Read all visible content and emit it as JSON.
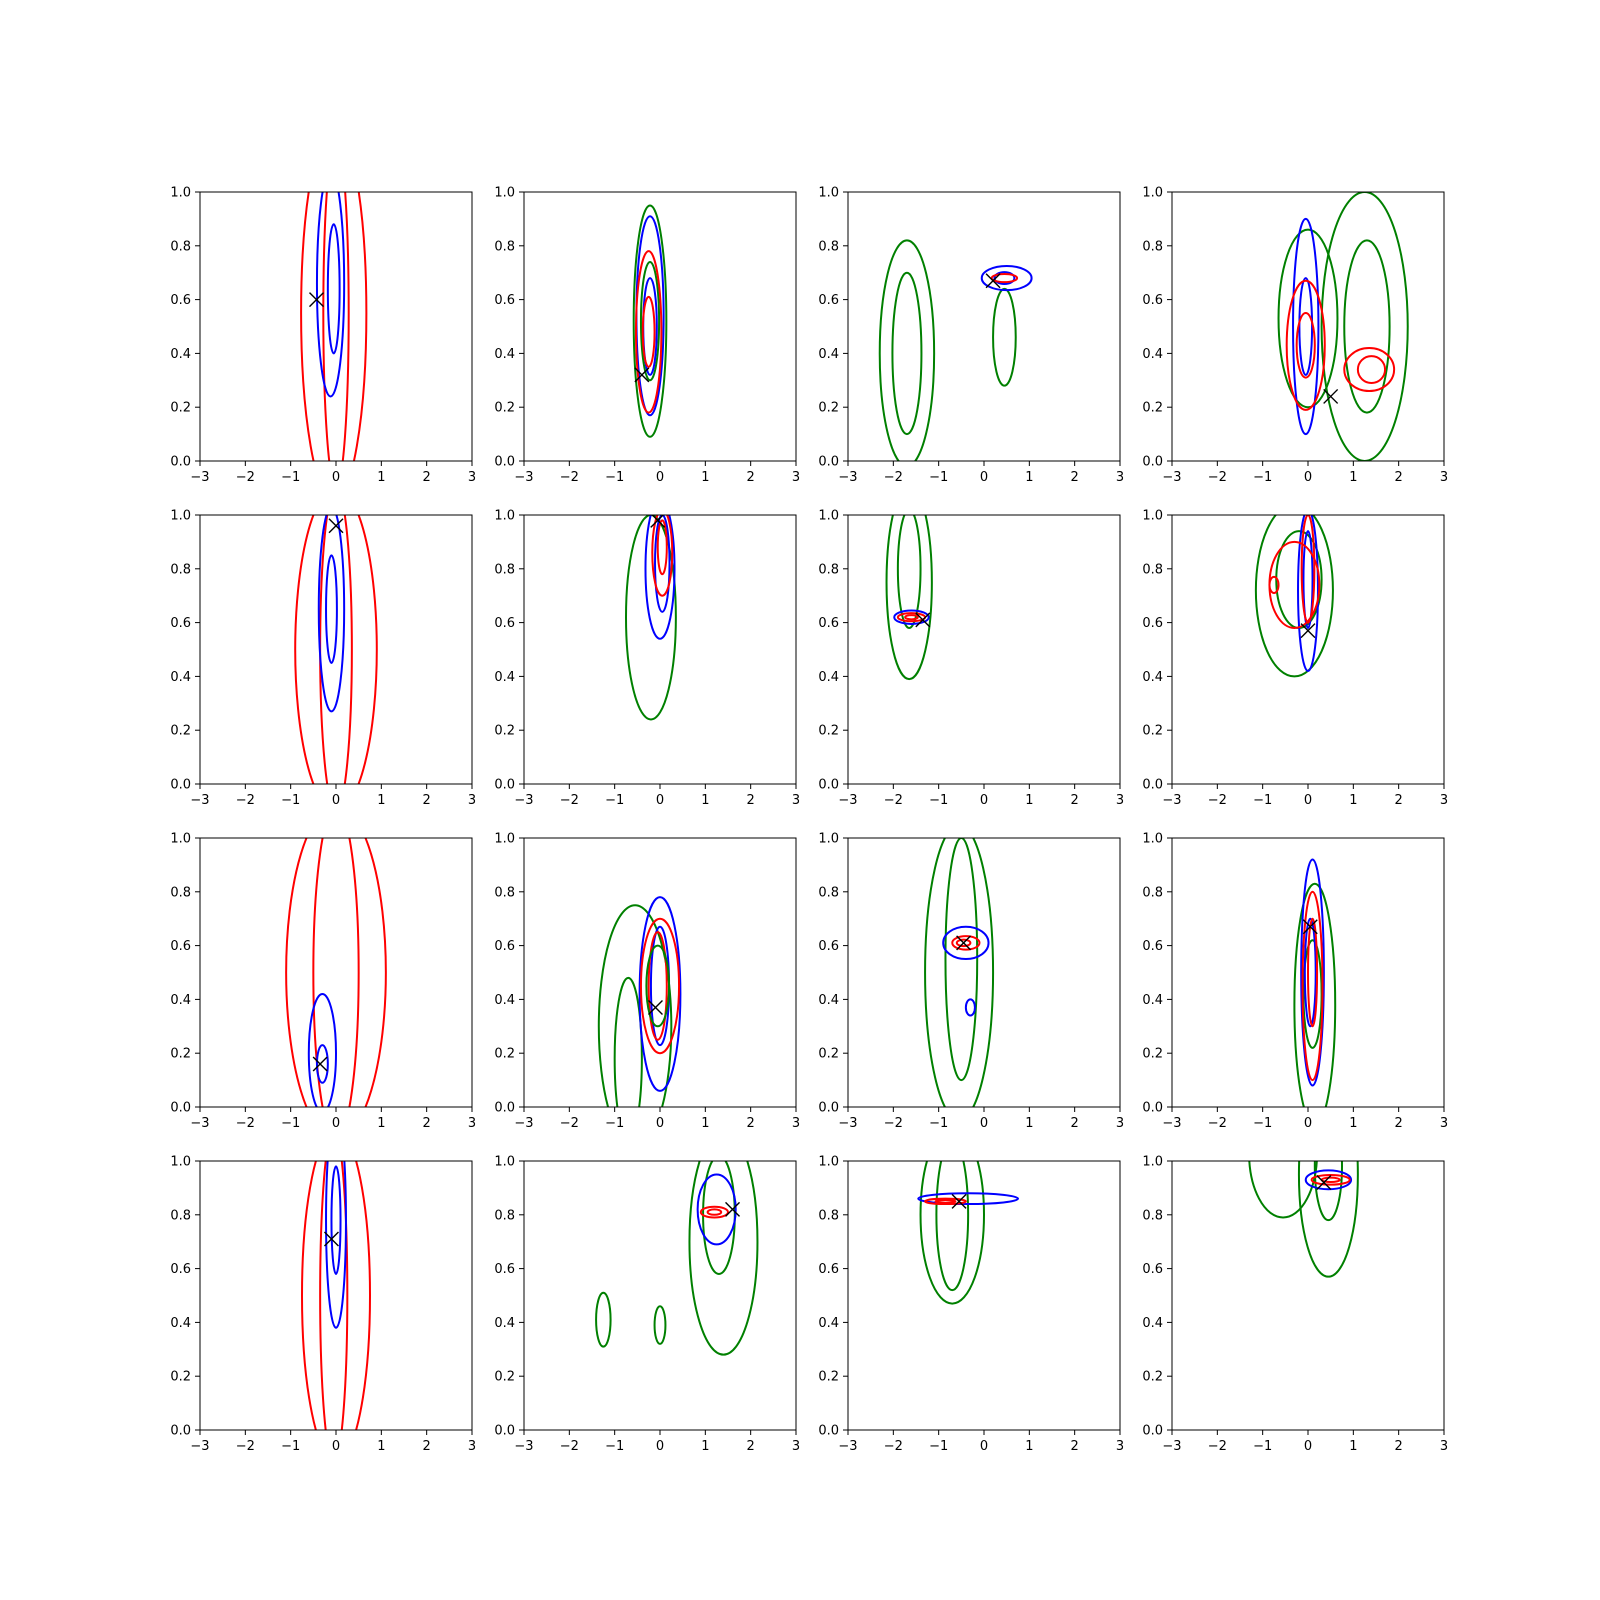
{
  "figure": {
    "rows": 4,
    "cols": 4,
    "colors": {
      "blue": "#0000ff",
      "red": "#ff0000",
      "green": "#008000",
      "marker": "#000000"
    }
  },
  "chart_data": [
    {
      "type": "contour",
      "xlim": [
        -3,
        3
      ],
      "ylim": [
        0,
        1
      ],
      "xticks": [
        "−3",
        "−2",
        "−1",
        "0",
        "1",
        "2",
        "3"
      ],
      "yticks": [
        "0.0",
        "0.2",
        "0.4",
        "0.6",
        "0.8",
        "1.0"
      ],
      "marker": {
        "x": -0.43,
        "y": 0.6
      },
      "contours": [
        {
          "color": "red",
          "cx": -0.05,
          "cy": 0.55,
          "rx": 0.72,
          "ry": 0.7
        },
        {
          "color": "red",
          "cx": 0.0,
          "cy": 0.55,
          "rx": 0.28,
          "ry": 0.65
        },
        {
          "color": "blue",
          "cx": -0.12,
          "cy": 0.66,
          "rx": 0.3,
          "ry": 0.42
        },
        {
          "color": "blue",
          "cx": -0.05,
          "cy": 0.64,
          "rx": 0.13,
          "ry": 0.24
        }
      ]
    },
    {
      "type": "contour",
      "xlim": [
        -3,
        3
      ],
      "ylim": [
        0,
        1
      ],
      "xticks": [
        "−3",
        "−2",
        "−1",
        "0",
        "1",
        "2",
        "3"
      ],
      "yticks": [
        "0.0",
        "0.2",
        "0.4",
        "0.6",
        "0.8",
        "1.0"
      ],
      "marker": {
        "x": -0.4,
        "y": 0.32
      },
      "contours": [
        {
          "color": "green",
          "cx": -0.22,
          "cy": 0.52,
          "rx": 0.36,
          "ry": 0.43
        },
        {
          "color": "green",
          "cx": -0.22,
          "cy": 0.52,
          "rx": 0.2,
          "ry": 0.22
        },
        {
          "color": "blue",
          "cx": -0.22,
          "cy": 0.54,
          "rx": 0.3,
          "ry": 0.37
        },
        {
          "color": "blue",
          "cx": -0.22,
          "cy": 0.5,
          "rx": 0.15,
          "ry": 0.18
        },
        {
          "color": "red",
          "cx": -0.25,
          "cy": 0.48,
          "rx": 0.28,
          "ry": 0.3
        },
        {
          "color": "red",
          "cx": -0.25,
          "cy": 0.48,
          "rx": 0.13,
          "ry": 0.13
        }
      ]
    },
    {
      "type": "contour",
      "xlim": [
        -3,
        3
      ],
      "ylim": [
        0,
        1
      ],
      "xticks": [
        "−3",
        "−2",
        "−1",
        "0",
        "1",
        "2",
        "3"
      ],
      "yticks": [
        "0.0",
        "0.2",
        "0.4",
        "0.6",
        "0.8",
        "1.0"
      ],
      "marker": {
        "x": 0.2,
        "y": 0.67
      },
      "contours": [
        {
          "color": "green",
          "cx": -1.7,
          "cy": 0.4,
          "rx": 0.6,
          "ry": 0.42
        },
        {
          "color": "green",
          "cx": -1.7,
          "cy": 0.4,
          "rx": 0.32,
          "ry": 0.3
        },
        {
          "color": "green",
          "cx": 0.45,
          "cy": 0.46,
          "rx": 0.25,
          "ry": 0.18
        },
        {
          "color": "blue",
          "cx": 0.5,
          "cy": 0.68,
          "rx": 0.55,
          "ry": 0.045
        },
        {
          "color": "blue",
          "cx": 0.45,
          "cy": 0.68,
          "rx": 0.22,
          "ry": 0.022
        },
        {
          "color": "red",
          "cx": 0.45,
          "cy": 0.68,
          "rx": 0.28,
          "ry": 0.015
        }
      ]
    },
    {
      "type": "contour",
      "xlim": [
        -3,
        3
      ],
      "ylim": [
        0,
        1
      ],
      "xticks": [
        "−3",
        "−2",
        "−1",
        "0",
        "1",
        "2",
        "3"
      ],
      "yticks": [
        "0.0",
        "0.2",
        "0.4",
        "0.6",
        "0.8",
        "1.0"
      ],
      "marker": {
        "x": 0.5,
        "y": 0.24
      },
      "contours": [
        {
          "color": "green",
          "cx": 1.25,
          "cy": 0.5,
          "rx": 0.95,
          "ry": 0.5
        },
        {
          "color": "green",
          "cx": 1.3,
          "cy": 0.5,
          "rx": 0.5,
          "ry": 0.32
        },
        {
          "color": "green",
          "cx": 0.0,
          "cy": 0.53,
          "rx": 0.65,
          "ry": 0.33
        },
        {
          "color": "blue",
          "cx": -0.05,
          "cy": 0.5,
          "rx": 0.28,
          "ry": 0.4
        },
        {
          "color": "blue",
          "cx": -0.05,
          "cy": 0.5,
          "rx": 0.14,
          "ry": 0.18
        },
        {
          "color": "red",
          "cx": -0.05,
          "cy": 0.43,
          "rx": 0.42,
          "ry": 0.24
        },
        {
          "color": "red",
          "cx": -0.05,
          "cy": 0.43,
          "rx": 0.2,
          "ry": 0.12
        },
        {
          "color": "red",
          "cx": 1.35,
          "cy": 0.34,
          "rx": 0.55,
          "ry": 0.08
        },
        {
          "color": "red",
          "cx": 1.4,
          "cy": 0.34,
          "rx": 0.3,
          "ry": 0.05
        }
      ]
    },
    {
      "type": "contour",
      "xlim": [
        -3,
        3
      ],
      "ylim": [
        0,
        1
      ],
      "xticks": [
        "−3",
        "−2",
        "−1",
        "0",
        "1",
        "2",
        "3"
      ],
      "yticks": [
        "0.0",
        "0.2",
        "0.4",
        "0.6",
        "0.8",
        "1.0"
      ],
      "marker": {
        "x": 0.0,
        "y": 0.96
      },
      "contours": [
        {
          "color": "red",
          "cx": 0.0,
          "cy": 0.5,
          "rx": 0.9,
          "ry": 0.6
        },
        {
          "color": "red",
          "cx": 0.0,
          "cy": 0.5,
          "rx": 0.35,
          "ry": 0.6
        },
        {
          "color": "blue",
          "cx": -0.1,
          "cy": 0.65,
          "rx": 0.28,
          "ry": 0.38
        },
        {
          "color": "blue",
          "cx": -0.1,
          "cy": 0.65,
          "rx": 0.12,
          "ry": 0.2
        }
      ]
    },
    {
      "type": "contour",
      "xlim": [
        -3,
        3
      ],
      "ylim": [
        0,
        1
      ],
      "xticks": [
        "−3",
        "−2",
        "−1",
        "0",
        "1",
        "2",
        "3"
      ],
      "yticks": [
        "0.0",
        "0.2",
        "0.4",
        "0.6",
        "0.8",
        "1.0"
      ],
      "marker": {
        "x": -0.05,
        "y": 0.98
      },
      "contours": [
        {
          "color": "green",
          "cx": -0.2,
          "cy": 0.62,
          "rx": 0.55,
          "ry": 0.38
        },
        {
          "color": "blue",
          "cx": 0.0,
          "cy": 0.8,
          "rx": 0.32,
          "ry": 0.26
        },
        {
          "color": "blue",
          "cx": 0.05,
          "cy": 0.82,
          "rx": 0.16,
          "ry": 0.18
        },
        {
          "color": "red",
          "cx": 0.05,
          "cy": 0.86,
          "rx": 0.22,
          "ry": 0.16
        },
        {
          "color": "red",
          "cx": 0.05,
          "cy": 0.88,
          "rx": 0.1,
          "ry": 0.1
        }
      ]
    },
    {
      "type": "contour",
      "xlim": [
        -3,
        3
      ],
      "ylim": [
        0,
        1
      ],
      "xticks": [
        "−3",
        "−2",
        "−1",
        "0",
        "1",
        "2",
        "3"
      ],
      "yticks": [
        "0.0",
        "0.2",
        "0.4",
        "0.6",
        "0.8",
        "1.0"
      ],
      "marker": {
        "x": -1.35,
        "y": 0.61
      },
      "contours": [
        {
          "color": "green",
          "cx": -1.65,
          "cy": 0.75,
          "rx": 0.5,
          "ry": 0.36
        },
        {
          "color": "green",
          "cx": -1.65,
          "cy": 0.8,
          "rx": 0.25,
          "ry": 0.22
        },
        {
          "color": "blue",
          "cx": -1.6,
          "cy": 0.62,
          "rx": 0.38,
          "ry": 0.025
        },
        {
          "color": "red",
          "cx": -1.6,
          "cy": 0.62,
          "rx": 0.3,
          "ry": 0.015
        },
        {
          "color": "red",
          "cx": -1.6,
          "cy": 0.62,
          "rx": 0.14,
          "ry": 0.008
        }
      ]
    },
    {
      "type": "contour",
      "xlim": [
        -3,
        3
      ],
      "ylim": [
        0,
        1
      ],
      "xticks": [
        "−3",
        "−2",
        "−1",
        "0",
        "1",
        "2",
        "3"
      ],
      "yticks": [
        "0.0",
        "0.2",
        "0.4",
        "0.6",
        "0.8",
        "1.0"
      ],
      "marker": {
        "x": 0.0,
        "y": 0.57
      },
      "contours": [
        {
          "color": "green",
          "cx": -0.3,
          "cy": 0.72,
          "rx": 0.85,
          "ry": 0.32
        },
        {
          "color": "green",
          "cx": -0.2,
          "cy": 0.76,
          "rx": 0.5,
          "ry": 0.18
        },
        {
          "color": "blue",
          "cx": 0.0,
          "cy": 0.72,
          "rx": 0.22,
          "ry": 0.3
        },
        {
          "color": "blue",
          "cx": 0.0,
          "cy": 0.76,
          "rx": 0.1,
          "ry": 0.18
        },
        {
          "color": "red",
          "cx": -0.3,
          "cy": 0.74,
          "rx": 0.55,
          "ry": 0.16
        },
        {
          "color": "red",
          "cx": -0.75,
          "cy": 0.74,
          "rx": 0.1,
          "ry": 0.03
        },
        {
          "color": "red",
          "cx": 0.0,
          "cy": 0.8,
          "rx": 0.14,
          "ry": 0.2
        }
      ]
    },
    {
      "type": "contour",
      "xlim": [
        -3,
        3
      ],
      "ylim": [
        0,
        1
      ],
      "xticks": [
        "−3",
        "−2",
        "−1",
        "0",
        "1",
        "2",
        "3"
      ],
      "yticks": [
        "0.0",
        "0.2",
        "0.4",
        "0.6",
        "0.8",
        "1.0"
      ],
      "marker": {
        "x": -0.35,
        "y": 0.16
      },
      "contours": [
        {
          "color": "red",
          "cx": 0.0,
          "cy": 0.5,
          "rx": 1.1,
          "ry": 0.62
        },
        {
          "color": "red",
          "cx": 0.0,
          "cy": 0.5,
          "rx": 0.5,
          "ry": 0.62
        },
        {
          "color": "blue",
          "cx": -0.3,
          "cy": 0.2,
          "rx": 0.3,
          "ry": 0.22
        },
        {
          "color": "blue",
          "cx": -0.3,
          "cy": 0.16,
          "rx": 0.12,
          "ry": 0.07
        }
      ]
    },
    {
      "type": "contour",
      "xlim": [
        -3,
        3
      ],
      "ylim": [
        0,
        1
      ],
      "xticks": [
        "−3",
        "−2",
        "−1",
        "0",
        "1",
        "2",
        "3"
      ],
      "yticks": [
        "0.0",
        "0.2",
        "0.4",
        "0.6",
        "0.8",
        "1.0"
      ],
      "marker": {
        "x": -0.1,
        "y": 0.37
      },
      "contours": [
        {
          "color": "green",
          "cx": -0.55,
          "cy": 0.3,
          "rx": 0.8,
          "ry": 0.45
        },
        {
          "color": "green",
          "cx": -0.7,
          "cy": 0.18,
          "rx": 0.3,
          "ry": 0.3
        },
        {
          "color": "blue",
          "cx": 0.0,
          "cy": 0.42,
          "rx": 0.45,
          "ry": 0.36
        },
        {
          "color": "blue",
          "cx": 0.0,
          "cy": 0.45,
          "rx": 0.2,
          "ry": 0.22
        },
        {
          "color": "red",
          "cx": 0.0,
          "cy": 0.45,
          "rx": 0.42,
          "ry": 0.25
        },
        {
          "color": "red",
          "cx": -0.05,
          "cy": 0.45,
          "rx": 0.2,
          "ry": 0.2
        },
        {
          "color": "green",
          "cx": -0.05,
          "cy": 0.45,
          "rx": 0.25,
          "ry": 0.15
        }
      ]
    },
    {
      "type": "contour",
      "xlim": [
        -3,
        3
      ],
      "ylim": [
        0,
        1
      ],
      "xticks": [
        "−3",
        "−2",
        "−1",
        "0",
        "1",
        "2",
        "3"
      ],
      "yticks": [
        "0.0",
        "0.2",
        "0.4",
        "0.6",
        "0.8",
        "1.0"
      ],
      "marker": {
        "x": -0.45,
        "y": 0.61
      },
      "contours": [
        {
          "color": "green",
          "cx": -0.55,
          "cy": 0.5,
          "rx": 0.75,
          "ry": 0.55
        },
        {
          "color": "green",
          "cx": -0.5,
          "cy": 0.55,
          "rx": 0.35,
          "ry": 0.45
        },
        {
          "color": "blue",
          "cx": -0.4,
          "cy": 0.61,
          "rx": 0.5,
          "ry": 0.06
        },
        {
          "color": "blue",
          "cx": -0.3,
          "cy": 0.37,
          "rx": 0.1,
          "ry": 0.03
        },
        {
          "color": "red",
          "cx": -0.4,
          "cy": 0.61,
          "rx": 0.3,
          "ry": 0.025
        },
        {
          "color": "red",
          "cx": -0.45,
          "cy": 0.61,
          "rx": 0.15,
          "ry": 0.012
        }
      ]
    },
    {
      "type": "contour",
      "xlim": [
        -3,
        3
      ],
      "ylim": [
        0,
        1
      ],
      "xticks": [
        "−3",
        "−2",
        "−1",
        "0",
        "1",
        "2",
        "3"
      ],
      "yticks": [
        "0.0",
        "0.2",
        "0.4",
        "0.6",
        "0.8",
        "1.0"
      ],
      "marker": {
        "x": 0.05,
        "y": 0.67
      },
      "contours": [
        {
          "color": "green",
          "cx": 0.15,
          "cy": 0.38,
          "rx": 0.45,
          "ry": 0.45
        },
        {
          "color": "green",
          "cx": 0.1,
          "cy": 0.42,
          "rx": 0.2,
          "ry": 0.2
        },
        {
          "color": "blue",
          "cx": 0.1,
          "cy": 0.5,
          "rx": 0.25,
          "ry": 0.42
        },
        {
          "color": "blue",
          "cx": 0.05,
          "cy": 0.5,
          "rx": 0.12,
          "ry": 0.2
        },
        {
          "color": "red",
          "cx": 0.1,
          "cy": 0.45,
          "rx": 0.22,
          "ry": 0.35
        },
        {
          "color": "red",
          "cx": 0.1,
          "cy": 0.5,
          "rx": 0.1,
          "ry": 0.2
        }
      ]
    },
    {
      "type": "contour",
      "xlim": [
        -3,
        3
      ],
      "ylim": [
        0,
        1
      ],
      "xticks": [
        "−3",
        "−2",
        "−1",
        "0",
        "1",
        "2",
        "3"
      ],
      "yticks": [
        "0.0",
        "0.2",
        "0.4",
        "0.6",
        "0.8",
        "1.0"
      ],
      "marker": {
        "x": -0.1,
        "y": 0.71
      },
      "contours": [
        {
          "color": "red",
          "cx": 0.0,
          "cy": 0.5,
          "rx": 0.75,
          "ry": 0.62
        },
        {
          "color": "red",
          "cx": -0.05,
          "cy": 0.5,
          "rx": 0.3,
          "ry": 0.62
        },
        {
          "color": "blue",
          "cx": 0.0,
          "cy": 0.78,
          "rx": 0.22,
          "ry": 0.4
        },
        {
          "color": "blue",
          "cx": 0.0,
          "cy": 0.78,
          "rx": 0.1,
          "ry": 0.2
        }
      ]
    },
    {
      "type": "contour",
      "xlim": [
        -3,
        3
      ],
      "ylim": [
        0,
        1
      ],
      "xticks": [
        "−3",
        "−2",
        "−1",
        "0",
        "1",
        "2",
        "3"
      ],
      "yticks": [
        "0.0",
        "0.2",
        "0.4",
        "0.6",
        "0.8",
        "1.0"
      ],
      "marker": {
        "x": 1.6,
        "y": 0.82
      },
      "contours": [
        {
          "color": "green",
          "cx": 1.4,
          "cy": 0.7,
          "rx": 0.75,
          "ry": 0.42
        },
        {
          "color": "green",
          "cx": 1.3,
          "cy": 0.8,
          "rx": 0.35,
          "ry": 0.22
        },
        {
          "color": "green",
          "cx": -1.25,
          "cy": 0.41,
          "rx": 0.16,
          "ry": 0.1
        },
        {
          "color": "green",
          "cx": 0.0,
          "cy": 0.39,
          "rx": 0.12,
          "ry": 0.07
        },
        {
          "color": "blue",
          "cx": 1.25,
          "cy": 0.82,
          "rx": 0.42,
          "ry": 0.13
        },
        {
          "color": "red",
          "cx": 1.2,
          "cy": 0.81,
          "rx": 0.3,
          "ry": 0.02
        },
        {
          "color": "red",
          "cx": 1.2,
          "cy": 0.81,
          "rx": 0.15,
          "ry": 0.01
        }
      ]
    },
    {
      "type": "contour",
      "xlim": [
        -3,
        3
      ],
      "ylim": [
        0,
        1
      ],
      "xticks": [
        "−3",
        "−2",
        "−1",
        "0",
        "1",
        "2",
        "3"
      ],
      "yticks": [
        "0.0",
        "0.2",
        "0.4",
        "0.6",
        "0.8",
        "1.0"
      ],
      "marker": {
        "x": -0.55,
        "y": 0.85
      },
      "contours": [
        {
          "color": "green",
          "cx": -0.7,
          "cy": 0.8,
          "rx": 0.7,
          "ry": 0.33
        },
        {
          "color": "green",
          "cx": -0.7,
          "cy": 0.8,
          "rx": 0.35,
          "ry": 0.28
        },
        {
          "color": "blue",
          "cx": -0.35,
          "cy": 0.86,
          "rx": 1.1,
          "ry": 0.02
        },
        {
          "color": "red",
          "cx": -0.85,
          "cy": 0.85,
          "rx": 0.45,
          "ry": 0.01
        },
        {
          "color": "red",
          "cx": -0.85,
          "cy": 0.85,
          "rx": 0.22,
          "ry": 0.005
        }
      ]
    },
    {
      "type": "contour",
      "xlim": [
        -3,
        3
      ],
      "ylim": [
        0,
        1
      ],
      "xticks": [
        "−3",
        "−2",
        "−1",
        "0",
        "1",
        "2",
        "3"
      ],
      "yticks": [
        "0.0",
        "0.2",
        "0.4",
        "0.6",
        "0.8",
        "1.0"
      ],
      "marker": {
        "x": 0.35,
        "y": 0.92
      },
      "contours": [
        {
          "color": "green",
          "cx": -0.55,
          "cy": 1.03,
          "rx": 0.75,
          "ry": 0.24
        },
        {
          "color": "green",
          "cx": 0.45,
          "cy": 0.95,
          "rx": 0.65,
          "ry": 0.38
        },
        {
          "color": "green",
          "cx": 0.45,
          "cy": 0.98,
          "rx": 0.3,
          "ry": 0.2
        },
        {
          "color": "blue",
          "cx": 0.45,
          "cy": 0.93,
          "rx": 0.5,
          "ry": 0.035
        },
        {
          "color": "red",
          "cx": 0.5,
          "cy": 0.93,
          "rx": 0.42,
          "ry": 0.018
        },
        {
          "color": "red",
          "cx": 0.5,
          "cy": 0.93,
          "rx": 0.2,
          "ry": 0.008
        }
      ]
    }
  ]
}
